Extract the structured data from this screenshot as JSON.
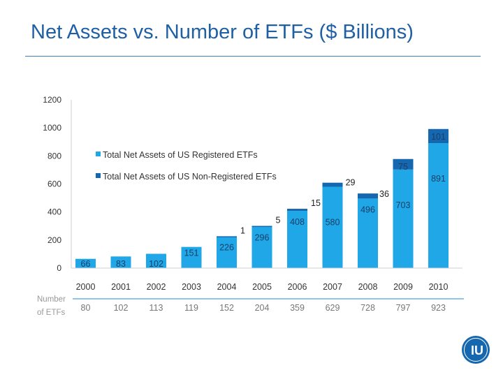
{
  "slide": {
    "title": "Net Assets vs. Number of ETFs ($ Billions)"
  },
  "logo": {
    "text": "IU"
  },
  "colors": {
    "registered": "#1fa7e8",
    "non_registered": "#1567b0",
    "title": "#1f5fa3",
    "etf_row_line": "#4aa3df"
  },
  "chart_data": {
    "type": "bar",
    "stacked": true,
    "title": "Net Assets vs. Number of ETFs ($ Billions)",
    "xlabel": "",
    "ylabel": "",
    "ylim": [
      0,
      1200
    ],
    "yticks": [
      0,
      200,
      400,
      600,
      800,
      1000,
      1200
    ],
    "categories": [
      "2000",
      "2001",
      "2002",
      "2003",
      "2004",
      "2005",
      "2006",
      "2007",
      "2008",
      "2009",
      "2010"
    ],
    "series": [
      {
        "name": "Total Net Assets of US Registered ETFs",
        "values": [
          66,
          83,
          102,
          151,
          226,
          296,
          408,
          580,
          496,
          703,
          891
        ],
        "labels": [
          "66",
          "83",
          "102",
          "151",
          "226",
          "296",
          "408",
          "580",
          "496",
          "703",
          "891"
        ]
      },
      {
        "name": "Total Net Assets of US Non-Registered  ETFs",
        "values": [
          0,
          0,
          0,
          0,
          1,
          5,
          15,
          29,
          36,
          75,
          101
        ],
        "labels": [
          "",
          "",
          "",
          "",
          "1",
          "5",
          "15",
          "29",
          "36",
          "75",
          "101"
        ]
      }
    ],
    "legend_position": "upper-left",
    "etf_count_label": [
      "Number",
      "of ETFs"
    ],
    "etf_counts": [
      "80",
      "102",
      "113",
      "119",
      "152",
      "204",
      "359",
      "629",
      "728",
      "797",
      "923"
    ]
  }
}
